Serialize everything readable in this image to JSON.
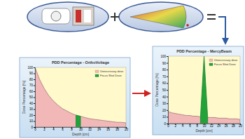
{
  "chart_data": [
    {
      "type": "area",
      "title": "PDD Percentage - OrthoVoltage",
      "xlabel": "Depth [cm]",
      "ylabel": "Dose Percentage [%]",
      "x": [
        0,
        1,
        2,
        3,
        4,
        5,
        6,
        7,
        8,
        9,
        10,
        11,
        12,
        13,
        14,
        15,
        16,
        17,
        18,
        19,
        20
      ],
      "series": [
        {
          "name": "Unnecessary dose",
          "color": "#f2b8b8",
          "values": [
            100,
            80,
            65,
            53,
            44,
            37,
            31,
            27,
            23,
            20,
            18,
            16,
            14,
            13,
            12,
            11,
            10,
            9,
            8,
            8,
            7
          ]
        },
        {
          "name": "Focus Shot Dose",
          "color": "#22a33a",
          "values": [
            null,
            null,
            null,
            null,
            null,
            null,
            null,
            null,
            null,
            20,
            18,
            null,
            null,
            null,
            null,
            null,
            null,
            null,
            null,
            null,
            null
          ]
        }
      ],
      "xlim": [
        0,
        20
      ],
      "ylim": [
        0,
        100
      ],
      "xticks": [
        0,
        2,
        4,
        6,
        8,
        10,
        12,
        14,
        16,
        18,
        20
      ],
      "yticks": [
        0,
        10,
        20,
        30,
        40,
        50,
        60,
        70,
        80,
        90,
        100
      ],
      "legend": "upper right",
      "grid": false
    },
    {
      "type": "area",
      "title": "PDD Percentage - MercyBeam",
      "xlabel": "Depth [cm]",
      "ylabel": "Dose Percentage [%]",
      "x": [
        0,
        1,
        2,
        3,
        4,
        5,
        6,
        7,
        8,
        9,
        10,
        11,
        12,
        13,
        14,
        15,
        16,
        17,
        18,
        19,
        20
      ],
      "series": [
        {
          "name": "Unnecessary dose",
          "color": "#f2b8b8",
          "values": [
            18,
            16,
            15,
            14,
            13,
            12,
            12,
            11,
            11,
            10,
            10,
            9,
            9,
            9,
            8,
            8,
            8,
            7,
            7,
            7,
            6
          ]
        },
        {
          "name": "Focus Shot Dose",
          "color": "#22a33a",
          "values": [
            null,
            null,
            null,
            null,
            null,
            null,
            null,
            null,
            null,
            10,
            100,
            10,
            null,
            null,
            null,
            null,
            null,
            null,
            null,
            null,
            null
          ]
        }
      ],
      "xlim": [
        0,
        20
      ],
      "ylim": [
        0,
        100
      ],
      "xticks": [
        0,
        2,
        4,
        6,
        8,
        10,
        12,
        14,
        16,
        18,
        20
      ],
      "yticks": [
        0,
        10,
        20,
        30,
        40,
        50,
        60,
        70,
        80,
        90,
        100
      ],
      "legend": "upper right",
      "grid": false
    }
  ]
}
